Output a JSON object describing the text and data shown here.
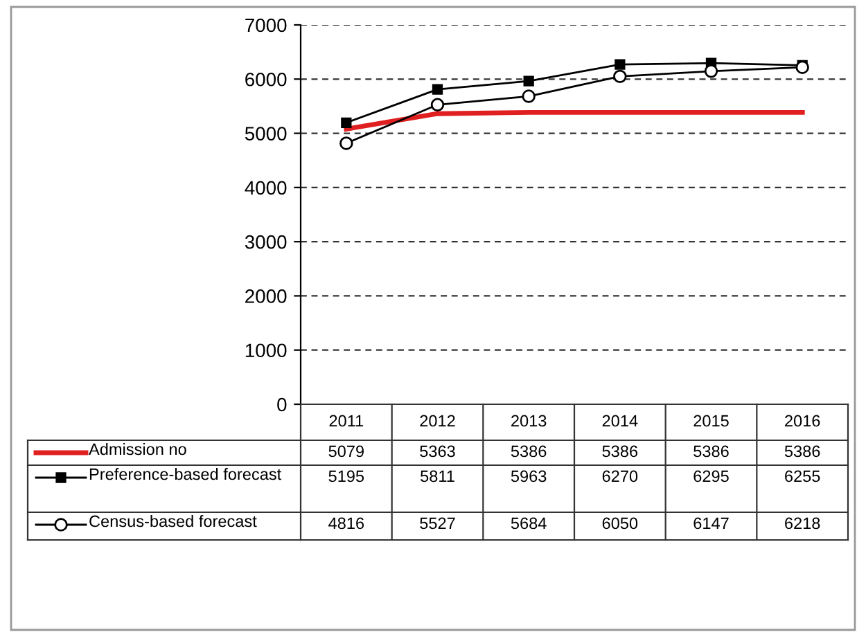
{
  "chart_data": {
    "type": "line",
    "categories": [
      "2011",
      "2012",
      "2013",
      "2014",
      "2015",
      "2016"
    ],
    "series": [
      {
        "name": "Admission no",
        "color": "#e02020",
        "marker": "none",
        "values": [
          5079,
          5363,
          5386,
          5386,
          5386,
          5386
        ]
      },
      {
        "name": "Preference-based forecast",
        "color": "#000000",
        "marker": "square",
        "values": [
          5195,
          5811,
          5963,
          6270,
          6295,
          6255
        ]
      },
      {
        "name": "Census-based forecast",
        "color": "#000000",
        "marker": "circle",
        "values": [
          4816,
          5527,
          5684,
          6050,
          6147,
          6218
        ]
      }
    ],
    "ylim": [
      0,
      7000
    ],
    "yticks": [
      0,
      1000,
      2000,
      3000,
      4000,
      5000,
      6000,
      7000
    ],
    "grid": "y",
    "legend": "bottom",
    "data_labels": true
  }
}
